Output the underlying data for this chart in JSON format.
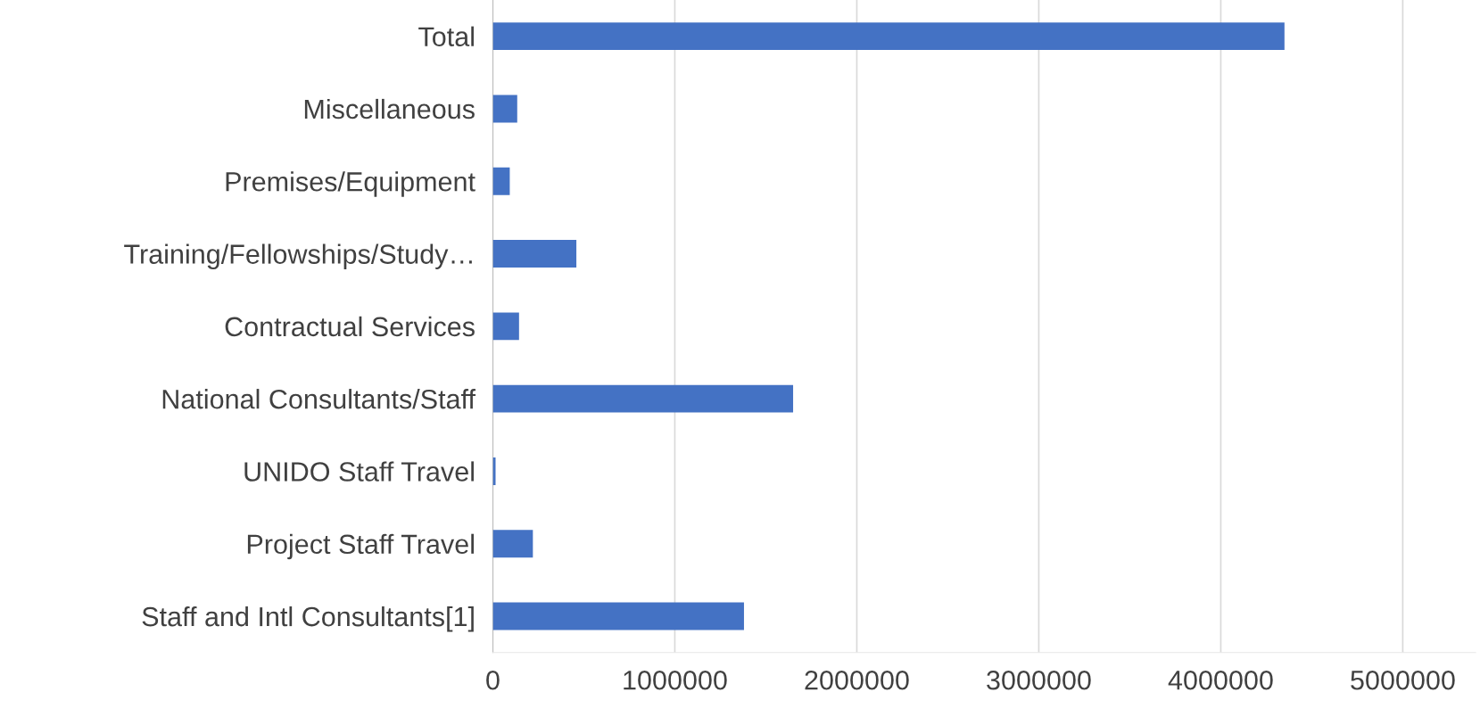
{
  "chart_data": {
    "type": "bar",
    "orientation": "horizontal",
    "categories": [
      "Total",
      "Miscellaneous",
      "Premises/Equipment",
      "Training/Fellowships/Study…",
      "Contractual Services",
      "National Consultants/Staff",
      "UNIDO Staff Travel",
      "Project Staff Travel",
      "Staff and Intl Consultants[1]"
    ],
    "values": [
      4350000,
      134000,
      93000,
      459000,
      144000,
      1650000,
      15000,
      220000,
      1380000
    ],
    "color": "#4472c4",
    "xlim": [
      0,
      5400000
    ],
    "xticks": [
      0,
      1000000,
      2000000,
      3000000,
      4000000,
      5000000
    ],
    "grid": "x",
    "legend": false
  }
}
